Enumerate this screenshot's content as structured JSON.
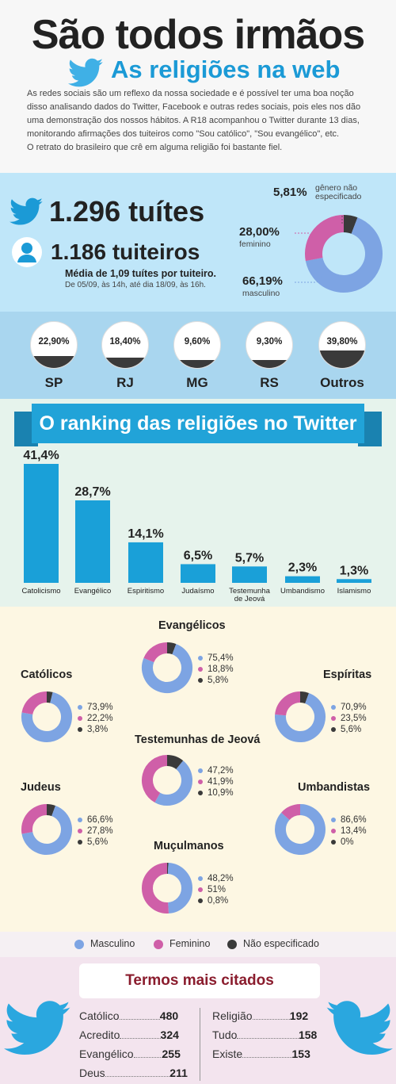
{
  "header": {
    "title": "São todos irmãos",
    "subtitle": "As religiões na web",
    "intro_lines": [
      "As redes sociais são um reflexo da nossa sociedade e é possível ter uma boa noção",
      "disso analisando dados do Twitter, Facebook e outras redes sociais, pois eles nos dão",
      "uma demonstração dos nossos hábitos.  A R18 acompanhou o Twitter durante 13 dias,",
      "monitorando afirmações dos tuiteiros como \"Sou católico\", \"Sou evangélico\", etc.",
      "O retrato do brasileiro que crê em alguma religião foi bastante fiel."
    ]
  },
  "stats": {
    "tweets": "1.296 tuítes",
    "users": "1.186 tuiteiros",
    "avg": "Média de 1,09 tuítes por tuiteiro.",
    "period": "De 05/09, às 14h,  até dia 18/09, às 16h.",
    "gender_pie": [
      {
        "label": "gênero não especificado",
        "line1": "gênero não",
        "line2": "especificado",
        "pct_text": "5,81%",
        "value": 5.81,
        "color": "#3a3a3a"
      },
      {
        "label": "feminino",
        "pct_text": "28,00%",
        "value": 28.0,
        "color": "#cf5fa8"
      },
      {
        "label": "masculino",
        "pct_text": "66,19%",
        "value": 66.19,
        "color": "#7da4e3"
      }
    ]
  },
  "states": [
    {
      "name": "SP",
      "pct_text": "22,90%",
      "value": 22.9
    },
    {
      "name": "RJ",
      "pct_text": "18,40%",
      "value": 18.4
    },
    {
      "name": "MG",
      "pct_text": "9,60%",
      "value": 9.6
    },
    {
      "name": "RS",
      "pct_text": "9,30%",
      "value": 9.3
    },
    {
      "name": "Outros",
      "pct_text": "39,80%",
      "value": 39.8
    }
  ],
  "chart_data": {
    "type": "bar",
    "title": "O ranking das religiões no Twitter",
    "categories": [
      "Catolicismo",
      "Evangélico",
      "Espiritismo",
      "Judaísmo",
      "Testemunha de Jeová",
      "Umbandismo",
      "Islamismo"
    ],
    "category_lines": [
      [
        "Catolicismo"
      ],
      [
        "Evangélico"
      ],
      [
        "Espiritismo"
      ],
      [
        "Judaísmo"
      ],
      [
        "Testemunha",
        "de Jeová"
      ],
      [
        "Umbandismo"
      ],
      [
        "Islamismo"
      ]
    ],
    "values": [
      41.4,
      28.7,
      14.1,
      6.5,
      5.7,
      2.3,
      1.3
    ],
    "value_labels": [
      "41,4%",
      "28,7%",
      "14,1%",
      "6,5%",
      "5,7%",
      "2,3%",
      "1,3%"
    ],
    "ylim": [
      0,
      41.4
    ],
    "bar_color": "#1aa0d8"
  },
  "religion_gender": [
    {
      "name": "Evangélicos",
      "masc": "75,4%",
      "fem": "18,8%",
      "nao": "5,8%",
      "values": [
        75.4,
        18.8,
        5.8
      ]
    },
    {
      "name": "Católicos",
      "masc": "73,9%",
      "fem": "22,2%",
      "nao": "3,8%",
      "values": [
        73.9,
        22.2,
        3.8
      ]
    },
    {
      "name": "Espíritas",
      "masc": "70,9%",
      "fem": "23,5%",
      "nao": "5,6%",
      "values": [
        70.9,
        23.5,
        5.6
      ]
    },
    {
      "name": "Testemunhas de Jeová",
      "masc": "47,2%",
      "fem": "41,9%",
      "nao": "10,9%",
      "values": [
        47.2,
        41.9,
        10.9
      ]
    },
    {
      "name": "Judeus",
      "masc": "66,6%",
      "fem": "27,8%",
      "nao": "5,6%",
      "values": [
        66.6,
        27.8,
        5.6
      ]
    },
    {
      "name": "Umbandistas",
      "masc": "86,6%",
      "fem": "13,4%",
      "nao": "0%",
      "values": [
        86.6,
        13.4,
        0
      ]
    },
    {
      "name": "Muçulmanos",
      "masc": "48,2%",
      "fem": "51%",
      "nao": "0,8%",
      "values": [
        48.2,
        51.0,
        0.8
      ]
    }
  ],
  "legend": {
    "masc": "Masculino",
    "fem": "Feminino",
    "nao": "Não especificado"
  },
  "colors": {
    "masc": "#7da4e3",
    "fem": "#cf5fa8",
    "nao": "#3a3a3a",
    "accent": "#1b9ad6"
  },
  "terms": {
    "title": "Termos mais citados",
    "left": [
      {
        "word": "Católico",
        "count": "480"
      },
      {
        "word": "Acredito",
        "count": "324"
      },
      {
        "word": "Evangélico",
        "count": "255"
      },
      {
        "word": "Deus",
        "count": "211"
      }
    ],
    "right": [
      {
        "word": "Religião",
        "count": "192"
      },
      {
        "word": "Tudo",
        "count": "158"
      },
      {
        "word": "Existe",
        "count": "153"
      }
    ]
  }
}
